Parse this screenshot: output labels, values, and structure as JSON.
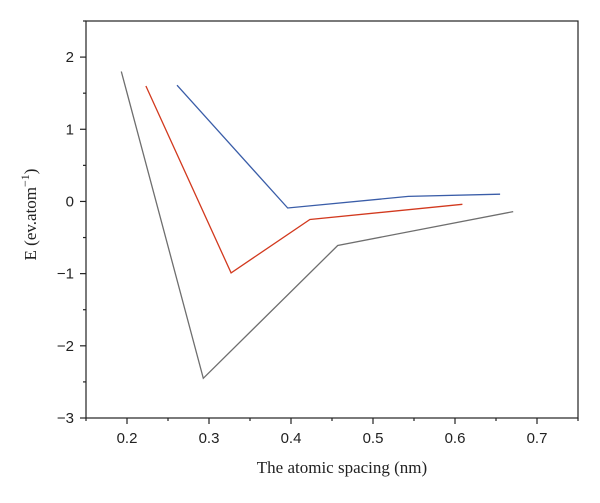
{
  "chart_data": {
    "type": "line",
    "xlabel": "The atomic spacing (nm)",
    "ylabel_main": "E (ev.atom",
    "ylabel_sup": "−1",
    "ylabel_close": ")",
    "xlim": [
      0.15,
      0.75
    ],
    "ylim": [
      -3,
      2.5
    ],
    "xticks": [
      0.2,
      0.3,
      0.4,
      0.5,
      0.6,
      0.7
    ],
    "xtick_labels": [
      "0.2",
      "0.3",
      "0.4",
      "0.5",
      "0.6",
      "0.7"
    ],
    "yticks": [
      -3,
      -2,
      -1,
      0,
      1,
      2
    ],
    "ytick_labels": [
      "−3",
      "−2",
      "−1",
      "0",
      "1",
      "2"
    ],
    "grid": false,
    "legend": "none",
    "series": [
      {
        "color": "#6e6e6e",
        "points": [
          [
            0.193,
            1.8
          ],
          [
            0.293,
            -2.45
          ],
          [
            0.457,
            -0.61
          ],
          [
            0.671,
            -0.14
          ]
        ]
      },
      {
        "color": "#d2391e",
        "points": [
          [
            0.223,
            1.6
          ],
          [
            0.327,
            -0.99
          ],
          [
            0.423,
            -0.25
          ],
          [
            0.609,
            -0.04
          ]
        ]
      },
      {
        "color": "#3a5da8",
        "points": [
          [
            0.261,
            1.61
          ],
          [
            0.396,
            -0.09
          ],
          [
            0.543,
            0.07
          ],
          [
            0.655,
            0.1
          ]
        ]
      }
    ]
  }
}
